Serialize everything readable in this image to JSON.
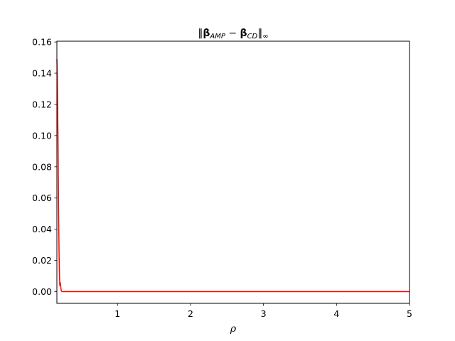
{
  "chart_data": {
    "type": "line",
    "title": {
      "norm_open": "‖",
      "beta1": "β",
      "sub1": "AMP",
      "minus": " − ",
      "beta2": "β",
      "sub2": "CD",
      "norm_close": "‖",
      "inf": "∞"
    },
    "xlabel": "ρ",
    "ylabel": "",
    "xlim": [
      0.17,
      5.0
    ],
    "ylim": [
      -0.0075,
      0.1605
    ],
    "xticks": [
      1,
      2,
      3,
      4,
      5
    ],
    "yticks": [
      0.0,
      0.02,
      0.04,
      0.06,
      0.08,
      0.1,
      0.12,
      0.14,
      0.16
    ],
    "yticks_format": [
      "0.00",
      "0.02",
      "0.04",
      "0.06",
      "0.08",
      "0.10",
      "0.12",
      "0.14",
      "0.16"
    ],
    "grid": false,
    "series": [
      {
        "color": "#ff0000",
        "x": [
          0.17,
          0.175,
          0.18,
          0.185,
          0.19,
          0.195,
          0.2,
          0.205,
          0.21,
          0.215,
          0.22,
          0.225,
          0.23,
          0.235,
          0.24,
          0.25,
          0.26,
          0.28,
          0.3,
          0.4,
          0.5,
          1.0,
          2.0,
          3.0,
          4.0,
          5.0
        ],
        "y": [
          0.149,
          0.14,
          0.12,
          0.1,
          0.072,
          0.045,
          0.025,
          0.012,
          0.004,
          0.006,
          0.005,
          0.002,
          0.0007,
          0.0003,
          0.0001,
          0.0,
          0.0,
          0.0,
          0.0,
          0.0,
          0.0,
          0.0,
          0.0,
          0.0,
          0.0,
          0.0
        ]
      }
    ]
  }
}
